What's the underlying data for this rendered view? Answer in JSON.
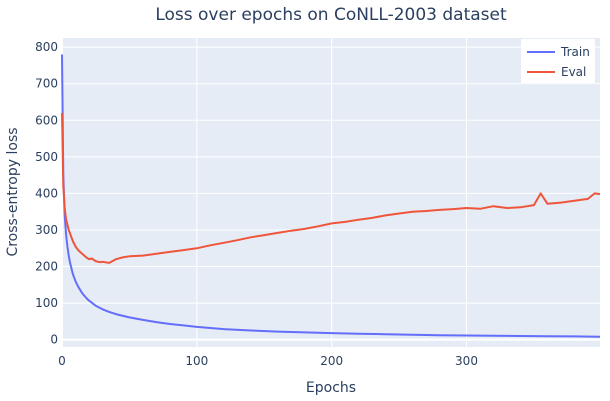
{
  "chart_data": {
    "type": "line",
    "title": "Loss over epochs on CoNLL-2003 dataset",
    "xlabel": "Epochs",
    "ylabel": "Cross-entropy loss",
    "xlim": [
      0,
      399
    ],
    "ylim": [
      -20,
      825
    ],
    "xticks": [
      0,
      100,
      200,
      300
    ],
    "yticks": [
      0,
      100,
      200,
      300,
      400,
      500,
      600,
      700,
      800
    ],
    "grid": true,
    "legend_position": "top-right",
    "background": "#e5ecf6",
    "series": [
      {
        "name": "Train",
        "color": "#636efa",
        "x": [
          0,
          1,
          2,
          3,
          4,
          5,
          6,
          8,
          10,
          12,
          15,
          18,
          20,
          25,
          30,
          35,
          40,
          50,
          60,
          70,
          80,
          90,
          100,
          120,
          140,
          160,
          180,
          200,
          220,
          240,
          260,
          280,
          300,
          320,
          340,
          360,
          380,
          399
        ],
        "y": [
          780,
          450,
          340,
          290,
          255,
          230,
          210,
          180,
          160,
          145,
          127,
          114,
          107,
          93,
          83,
          76,
          70,
          61,
          54,
          48,
          43,
          39,
          35,
          29,
          25,
          22,
          20,
          18,
          16,
          15,
          13.5,
          12,
          11.5,
          10.5,
          10,
          9.5,
          9,
          8
        ]
      },
      {
        "name": "Eval",
        "color": "#ef553b",
        "x": [
          0,
          1,
          2,
          3,
          4,
          5,
          6,
          8,
          10,
          12,
          15,
          18,
          20,
          22,
          25,
          28,
          30,
          35,
          40,
          45,
          50,
          60,
          70,
          80,
          90,
          100,
          110,
          120,
          130,
          140,
          150,
          160,
          170,
          180,
          190,
          200,
          210,
          220,
          230,
          240,
          250,
          260,
          270,
          280,
          290,
          300,
          310,
          320,
          330,
          340,
          350,
          355,
          360,
          370,
          380,
          390,
          395,
          399
        ],
        "y": [
          620,
          420,
          360,
          330,
          315,
          300,
          290,
          270,
          255,
          245,
          235,
          225,
          220,
          222,
          215,
          212,
          213,
          210,
          220,
          225,
          228,
          230,
          235,
          240,
          245,
          250,
          258,
          265,
          272,
          280,
          286,
          292,
          298,
          303,
          310,
          318,
          322,
          328,
          333,
          340,
          345,
          350,
          352,
          355,
          357,
          360,
          358,
          365,
          360,
          362,
          368,
          400,
          372,
          375,
          380,
          385,
          400,
          398
        ]
      }
    ]
  }
}
